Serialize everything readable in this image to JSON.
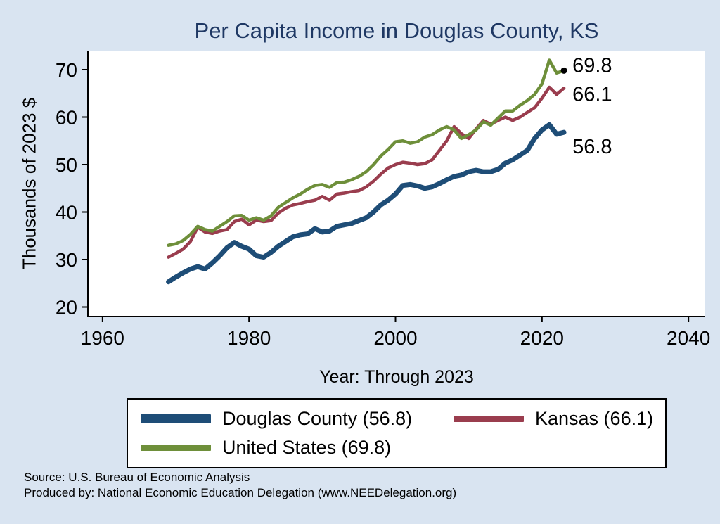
{
  "footer": {
    "line1": "Source: U.S. Bureau of Economic Analysis",
    "line2": "Produced by: National Economic Education Delegation (www.NEEDelegation.org)"
  },
  "chart_data": {
    "type": "line",
    "title": "Per Capita Income in Douglas County, KS",
    "xlabel": "Year: Through 2023",
    "ylabel": "Thousands of 2023 $",
    "x_ticks": [
      1960,
      1980,
      2000,
      2020,
      2040
    ],
    "y_ticks": [
      20,
      30,
      40,
      50,
      60,
      70
    ],
    "xlim": [
      1958,
      2042
    ],
    "ylim": [
      18,
      74
    ],
    "grid": false,
    "legend_position": "bottom",
    "years": [
      1969,
      1970,
      1971,
      1972,
      1973,
      1974,
      1975,
      1976,
      1977,
      1978,
      1979,
      1980,
      1981,
      1982,
      1983,
      1984,
      1985,
      1986,
      1987,
      1988,
      1989,
      1990,
      1991,
      1992,
      1993,
      1994,
      1995,
      1996,
      1997,
      1998,
      1999,
      2000,
      2001,
      2002,
      2003,
      2004,
      2005,
      2006,
      2007,
      2008,
      2009,
      2010,
      2011,
      2012,
      2013,
      2014,
      2015,
      2016,
      2017,
      2018,
      2019,
      2020,
      2021,
      2022,
      2023
    ],
    "series": [
      {
        "name": "Douglas County",
        "end_label": "56.8",
        "color": "#1e4d77",
        "width": 7,
        "label_dy": 30,
        "end_dot": false,
        "values": [
          25.3,
          26.3,
          27.2,
          28.0,
          28.5,
          28.0,
          29.3,
          30.8,
          32.5,
          33.6,
          32.8,
          32.2,
          30.8,
          30.5,
          31.5,
          32.8,
          33.8,
          34.8,
          35.2,
          35.4,
          36.5,
          35.8,
          36.0,
          37.0,
          37.3,
          37.6,
          38.2,
          38.8,
          40.0,
          41.5,
          42.5,
          43.8,
          45.6,
          45.8,
          45.5,
          45.0,
          45.3,
          46.0,
          46.8,
          47.5,
          47.8,
          48.5,
          48.8,
          48.5,
          48.5,
          49.0,
          50.3,
          51.0,
          52.0,
          53.0,
          55.5,
          57.3,
          58.4,
          56.4,
          56.8
        ]
      },
      {
        "name": "Kansas",
        "end_label": "66.1",
        "color": "#9a3d4e",
        "width": 4.5,
        "label_dy": 18,
        "end_dot": false,
        "values": [
          30.5,
          31.3,
          32.2,
          33.8,
          36.8,
          35.8,
          35.5,
          36.0,
          36.3,
          38.0,
          38.5,
          37.3,
          38.3,
          38.0,
          38.2,
          39.8,
          40.8,
          41.5,
          41.8,
          42.2,
          42.5,
          43.3,
          42.5,
          43.8,
          44.0,
          44.3,
          44.5,
          45.3,
          46.5,
          48.0,
          49.3,
          50.0,
          50.5,
          50.3,
          50.0,
          50.2,
          51.0,
          53.0,
          55.0,
          58.0,
          56.5,
          55.5,
          57.5,
          59.3,
          58.5,
          59.3,
          60.0,
          59.3,
          60.0,
          61.0,
          62.0,
          64.0,
          66.3,
          64.8,
          66.1
        ]
      },
      {
        "name": "United States",
        "end_label": "69.8",
        "color": "#6e8f3a",
        "width": 4.5,
        "label_dy": 2,
        "end_dot": true,
        "values": [
          33.0,
          33.3,
          34.0,
          35.3,
          37.0,
          36.3,
          36.0,
          37.0,
          38.0,
          39.2,
          39.3,
          38.3,
          38.8,
          38.3,
          39.2,
          41.0,
          42.0,
          43.0,
          43.8,
          44.8,
          45.6,
          45.8,
          45.2,
          46.2,
          46.3,
          46.8,
          47.5,
          48.5,
          50.0,
          51.8,
          53.2,
          54.8,
          55.0,
          54.5,
          54.8,
          55.8,
          56.3,
          57.3,
          58.0,
          57.3,
          55.5,
          56.3,
          57.3,
          59.0,
          58.3,
          59.8,
          61.3,
          61.3,
          62.5,
          63.5,
          64.8,
          67.0,
          72.0,
          69.3,
          69.8
        ]
      }
    ],
    "legend": {
      "items": [
        {
          "label": "Douglas County (56.8)"
        },
        {
          "label": "Kansas (66.1)"
        },
        {
          "label": "United States (69.8)"
        }
      ]
    }
  }
}
